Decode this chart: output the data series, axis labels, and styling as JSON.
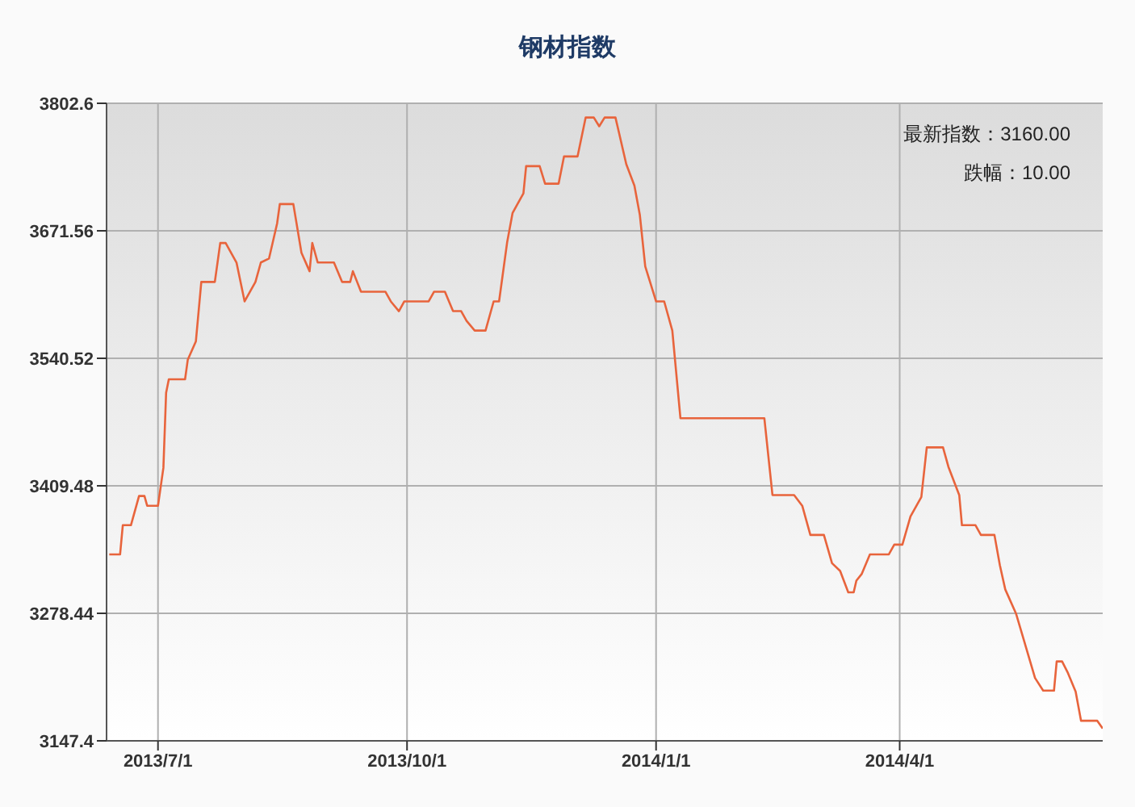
{
  "chart_data": {
    "type": "line",
    "title": "钢材指数",
    "annotations": [
      "最新指数：3160.00",
      "跌幅：10.00"
    ],
    "x": [
      "2013-06-13",
      "2013-06-17",
      "2013-06-18",
      "2013-06-21",
      "2013-06-24",
      "2013-06-26",
      "2013-06-27",
      "2013-07-01",
      "2013-07-03",
      "2013-07-04",
      "2013-07-05",
      "2013-07-11",
      "2013-07-12",
      "2013-07-15",
      "2013-07-17",
      "2013-07-22",
      "2013-07-24",
      "2013-07-26",
      "2013-07-30",
      "2013-08-02",
      "2013-08-06",
      "2013-08-08",
      "2013-08-11",
      "2013-08-14",
      "2013-08-15",
      "2013-08-20",
      "2013-08-23",
      "2013-08-26",
      "2013-08-27",
      "2013-08-29",
      "2013-09-04",
      "2013-09-07",
      "2013-09-10",
      "2013-09-11",
      "2013-09-14",
      "2013-09-23",
      "2013-09-25",
      "2013-09-28",
      "2013-09-30",
      "2013-10-01",
      "2013-10-09",
      "2013-10-11",
      "2013-10-15",
      "2013-10-18",
      "2013-10-21",
      "2013-10-23",
      "2013-10-26",
      "2013-10-30",
      "2013-11-02",
      "2013-11-04",
      "2013-11-07",
      "2013-11-09",
      "2013-11-13",
      "2013-11-14",
      "2013-11-19",
      "2013-11-21",
      "2013-11-26",
      "2013-11-28",
      "2013-12-03",
      "2013-12-06",
      "2013-12-09",
      "2013-12-11",
      "2013-12-13",
      "2013-12-17",
      "2013-12-21",
      "2013-12-24",
      "2013-12-26",
      "2013-12-28",
      "2014-01-01",
      "2014-01-04",
      "2014-01-07",
      "2014-01-10",
      "2014-02-10",
      "2014-02-13",
      "2014-02-21",
      "2014-02-24",
      "2014-02-27",
      "2014-03-04",
      "2014-03-07",
      "2014-03-10",
      "2014-03-13",
      "2014-03-15",
      "2014-03-16",
      "2014-03-18",
      "2014-03-21",
      "2014-03-28",
      "2014-03-30",
      "2014-04-02",
      "2014-04-05",
      "2014-04-09",
      "2014-04-11",
      "2014-04-17",
      "2014-04-19",
      "2014-04-23",
      "2014-04-24",
      "2014-04-29",
      "2014-05-01",
      "2014-05-06",
      "2014-05-08",
      "2014-05-10",
      "2014-05-14",
      "2014-05-21",
      "2014-05-24",
      "2014-05-28",
      "2014-05-29",
      "2014-05-31",
      "2014-06-02",
      "2014-06-05",
      "2014-06-07",
      "2014-06-13",
      "2014-06-15"
    ],
    "values": [
      3339,
      3339,
      3369,
      3369,
      3399,
      3399,
      3389,
      3389,
      3428,
      3505,
      3519,
      3519,
      3539,
      3558,
      3619,
      3619,
      3659,
      3659,
      3639,
      3599,
      3619,
      3639,
      3643,
      3679,
      3699,
      3699,
      3649,
      3630,
      3659,
      3639,
      3639,
      3619,
      3619,
      3630,
      3609,
      3609,
      3599,
      3589,
      3599,
      3599,
      3599,
      3609,
      3609,
      3589,
      3589,
      3579,
      3569,
      3569,
      3599,
      3599,
      3660,
      3690,
      3710,
      3738,
      3738,
      3720,
      3720,
      3748,
      3748,
      3788,
      3788,
      3779,
      3788,
      3788,
      3740,
      3718,
      3688,
      3635,
      3599,
      3599,
      3569,
      3479,
      3479,
      3400,
      3400,
      3389,
      3359,
      3359,
      3330,
      3322,
      3300,
      3300,
      3312,
      3319,
      3339,
      3339,
      3349,
      3349,
      3378,
      3398,
      3449,
      3449,
      3429,
      3400,
      3369,
      3369,
      3359,
      3359,
      3328,
      3303,
      3278,
      3212,
      3199,
      3199,
      3229,
      3229,
      3218,
      3198,
      3168,
      3168,
      3160
    ],
    "color": "#e8643c",
    "xlim": [
      "2013-06-12",
      "2014-06-15"
    ],
    "xticks": [
      {
        "value": "2013-07-01",
        "label": "2013/7/1"
      },
      {
        "value": "2013-10-01",
        "label": "2013/10/1"
      },
      {
        "value": "2014-01-01",
        "label": "2014/1/1"
      },
      {
        "value": "2014-04-01",
        "label": "2014/4/1"
      }
    ],
    "ylim": [
      3147.4,
      3802.6
    ],
    "yticks": [
      3147.4,
      3278.44,
      3409.48,
      3540.52,
      3671.56,
      3802.6
    ],
    "grid": true
  }
}
